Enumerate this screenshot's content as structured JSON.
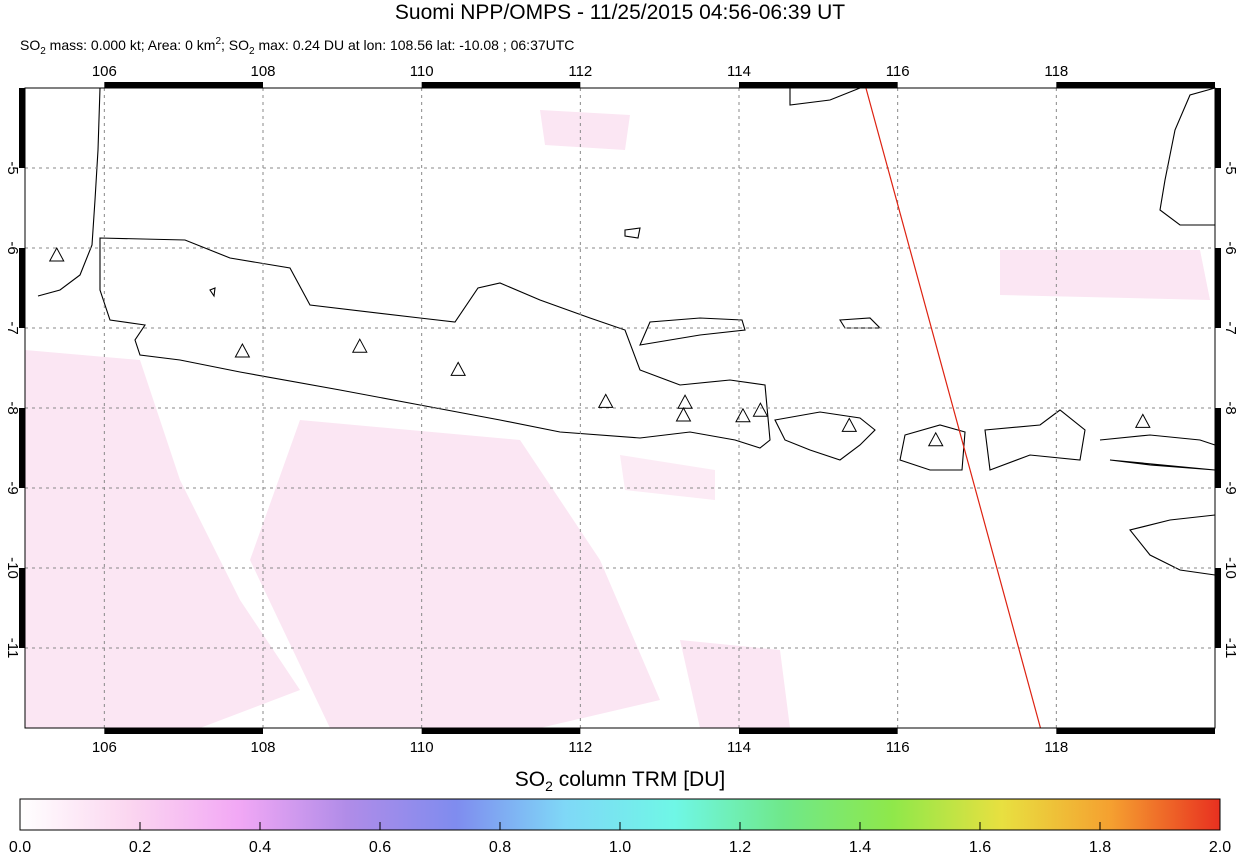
{
  "title": "Suomi NPP/OMPS - 11/25/2015 04:56-06:39 UT",
  "subtitle": [
    "SO",
    "2",
    " mass: 0.000 kt; Area: 0 km",
    "2",
    "; SO",
    "2",
    " max: 0.24 DU at lon: 108.56 lat: -10.08 ; 06:37UTC"
  ],
  "map": {
    "xlim": [
      105,
      120
    ],
    "ylim": [
      -12,
      -4
    ],
    "xticks": [
      106,
      108,
      110,
      112,
      114,
      116,
      118
    ],
    "yticks": [
      -5,
      -6,
      -7,
      -8,
      -9,
      -10,
      -11
    ],
    "grid": true,
    "track": {
      "color": "#dd2211",
      "lon": [
        115.6,
        117.8
      ],
      "lat": [
        -4,
        -12
      ]
    },
    "volcanoes": {
      "lon": [
        105.4,
        107.74,
        109.22,
        110.46,
        112.32,
        113.32,
        113.3,
        114.05,
        114.27,
        115.39,
        116.48,
        119.09
      ],
      "lat": [
        -6.1,
        -7.3,
        -7.24,
        -7.53,
        -7.93,
        -7.94,
        -8.1,
        -8.11,
        -8.04,
        -8.23,
        -8.41,
        -8.18
      ]
    }
  },
  "colorbar": {
    "label": [
      "SO",
      "2",
      " column TRM [DU]"
    ],
    "lim": [
      0,
      2
    ],
    "colors": [
      "#ffffff",
      "#fbd6f0",
      "#f2a8f5",
      "#b08ce8",
      "#7f8cef",
      "#7fd8f7",
      "#6ff7e6",
      "#6fe88a",
      "#8fe84a",
      "#e8e040",
      "#f5a030",
      "#e83020"
    ],
    "ticks": [
      {
        "value": 0,
        "label": "0.0"
      },
      {
        "value": 0.2,
        "label": "0.2"
      },
      {
        "value": 0.4,
        "label": "0.4"
      },
      {
        "value": 0.6,
        "label": "0.6"
      },
      {
        "value": 0.8,
        "label": "0.8"
      },
      {
        "value": 1,
        "label": "1.0"
      },
      {
        "value": 1.2,
        "label": "1.2"
      },
      {
        "value": 1.4,
        "label": "1.4"
      },
      {
        "value": 1.6,
        "label": "1.6"
      },
      {
        "value": 1.8,
        "label": "1.8"
      },
      {
        "value": 2,
        "label": "2.0"
      }
    ]
  }
}
